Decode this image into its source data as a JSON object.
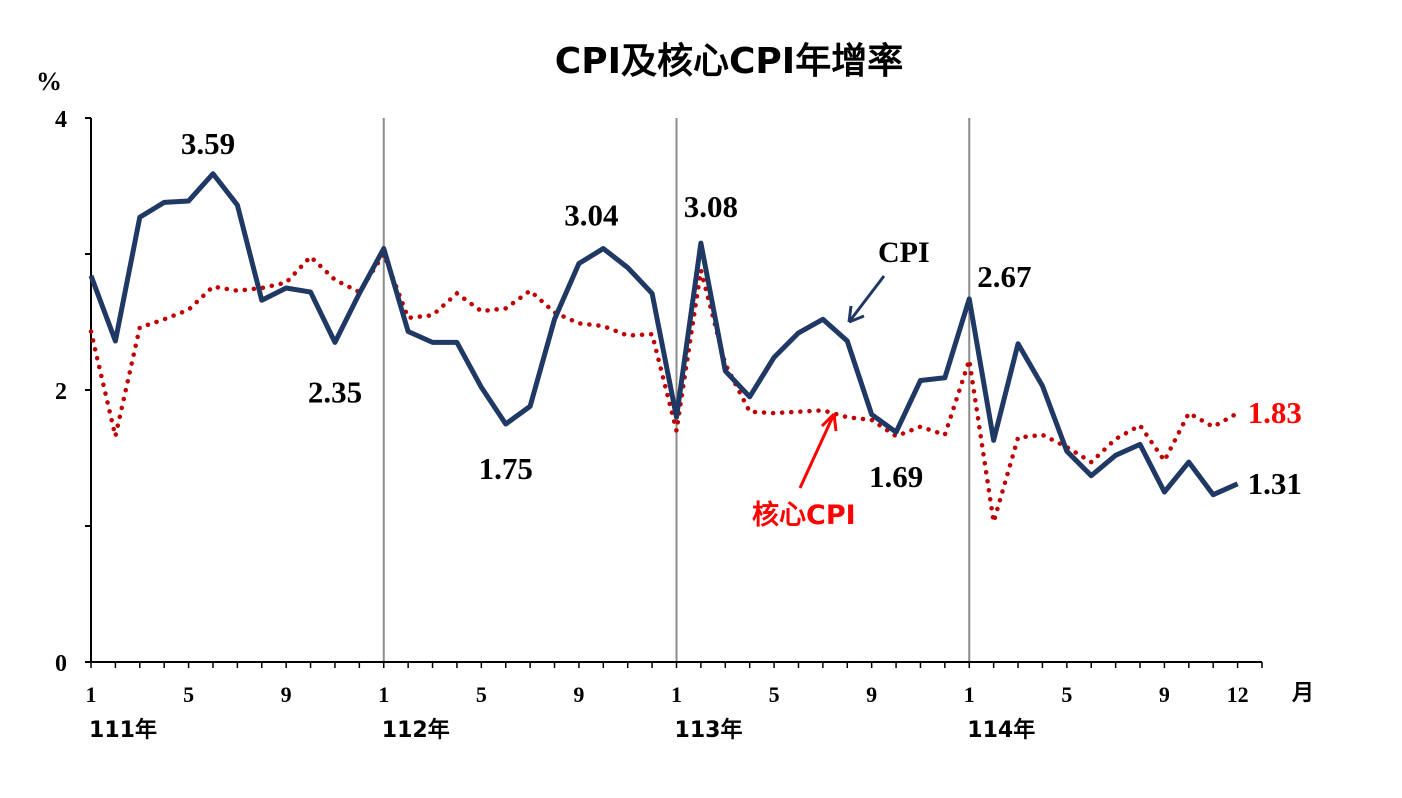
{
  "chart_data": {
    "type": "line",
    "title": "CPI及核心CPI年增率",
    "ylabel": "%",
    "xlabel": "月",
    "ylim": [
      0,
      4
    ],
    "yticks": [
      "0",
      "2",
      "4"
    ],
    "x_month_labels": [
      "1",
      "5",
      "9",
      "1",
      "5",
      "9",
      "1",
      "5",
      "9",
      "1",
      "5",
      "9",
      "12"
    ],
    "year_labels": [
      "111年",
      "112年",
      "113年",
      "114年"
    ],
    "series": [
      {
        "name": "CPI",
        "color": "#1f3864",
        "style": "solid",
        "values": [
          2.84,
          2.36,
          3.27,
          3.38,
          3.39,
          3.59,
          3.36,
          2.66,
          2.75,
          2.72,
          2.35,
          2.71,
          3.04,
          2.43,
          2.35,
          2.35,
          2.02,
          1.75,
          1.88,
          2.52,
          2.93,
          3.04,
          2.9,
          2.71,
          1.8,
          3.08,
          2.14,
          1.95,
          2.24,
          2.42,
          2.52,
          2.36,
          1.82,
          1.69,
          2.07,
          2.09,
          2.67,
          1.63,
          2.34,
          2.03,
          1.55,
          1.37,
          1.52,
          1.6,
          1.25,
          1.47,
          1.23,
          1.31
        ]
      },
      {
        "name": "核心CPI",
        "color": "#c00000",
        "style": "dotted",
        "values": [
          2.43,
          1.66,
          2.46,
          2.52,
          2.59,
          2.76,
          2.73,
          2.75,
          2.79,
          2.98,
          2.81,
          2.72,
          3.0,
          2.53,
          2.55,
          2.71,
          2.58,
          2.6,
          2.73,
          2.57,
          2.49,
          2.47,
          2.4,
          2.41,
          1.7,
          2.88,
          2.19,
          1.84,
          1.83,
          1.84,
          1.85,
          1.8,
          1.78,
          1.66,
          1.73,
          1.67,
          2.22,
          1.03,
          1.65,
          1.67,
          1.58,
          1.47,
          1.64,
          1.74,
          1.48,
          1.83,
          1.73,
          1.83
        ]
      }
    ],
    "annotations": [
      {
        "series": 0,
        "index": 5,
        "label": "3.59"
      },
      {
        "series": 0,
        "index": 10,
        "label": "2.35"
      },
      {
        "series": 0,
        "index": 17,
        "label": "1.75"
      },
      {
        "series": 0,
        "index": 21,
        "label": "3.04"
      },
      {
        "series": 0,
        "index": 25,
        "label": "3.08"
      },
      {
        "series": 0,
        "index": 33,
        "label": "1.69"
      },
      {
        "series": 0,
        "index": 36,
        "label": "2.67"
      },
      {
        "series": 0,
        "index": 47,
        "label": "1.31"
      },
      {
        "series": 1,
        "index": 47,
        "label": "1.83"
      }
    ],
    "callouts": [
      {
        "label": "CPI"
      },
      {
        "label": "核心CPI"
      }
    ]
  }
}
